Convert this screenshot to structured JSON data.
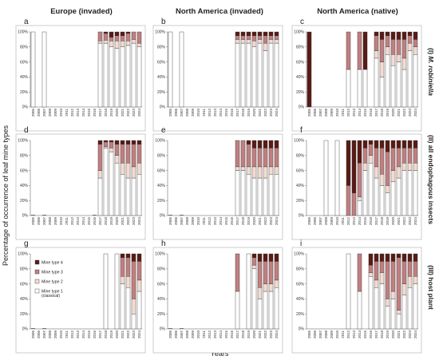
{
  "columns": [
    {
      "title": "Europe (invaded)",
      "bg": "#ffffff"
    },
    {
      "title": "North America (invaded)",
      "bg": "#c9cfea"
    },
    {
      "title": "North America (native)",
      "bg": "#cde3b2"
    }
  ],
  "rows": [
    {
      "label_prefix": "(I) ",
      "label_italic": "M. robiniella",
      "label_suffix": ""
    },
    {
      "label_prefix": "(II) all endophagous insects",
      "label_italic": "",
      "label_suffix": ""
    },
    {
      "label_prefix": "(III) host plant",
      "label_italic": "",
      "label_suffix": ""
    }
  ],
  "y_axis_title": "Percentage of occurrence of leaf mine types",
  "x_axis_title": "Years",
  "colors": {
    "type1": "#ffffff",
    "type2": "#f2dcd2",
    "type3": "#c07f80",
    "type4": "#5a1a14"
  },
  "chart_data": {
    "type": "bar",
    "stacked": true,
    "x": [
      "2005",
      "2006",
      "2007",
      "2008",
      "2009",
      "2010",
      "2011",
      "2012",
      "2013",
      "2014",
      "2015",
      "2016",
      "2017",
      "2018",
      "2019",
      "2020",
      "2021",
      "2022",
      "2023",
      "2024"
    ],
    "y_ticks": [
      "0%",
      "20%",
      "40%",
      "60%",
      "80%",
      "100%"
    ],
    "ylim": [
      0,
      100
    ],
    "legend": [
      "Mine type 4",
      "Mine type 3",
      "Mine type 2",
      "Mine type 1 (classical)"
    ],
    "panels": [
      {
        "label": "a",
        "region": "Europe (invaded)",
        "data": "M. robiniella",
        "t1": [
          100,
          null,
          100,
          null,
          null,
          null,
          null,
          null,
          null,
          null,
          null,
          null,
          85,
          85,
          80,
          78,
          80,
          82,
          85,
          80
        ],
        "t2": [
          0,
          null,
          0,
          null,
          null,
          null,
          null,
          null,
          null,
          null,
          null,
          null,
          3,
          4,
          8,
          10,
          8,
          6,
          5,
          5
        ],
        "t3": [
          0,
          null,
          0,
          null,
          null,
          null,
          null,
          null,
          null,
          null,
          null,
          null,
          12,
          9,
          5,
          7,
          7,
          10,
          10,
          15
        ],
        "t4": [
          0,
          null,
          0,
          null,
          null,
          null,
          null,
          null,
          null,
          null,
          null,
          null,
          0,
          2,
          7,
          5,
          5,
          2,
          0,
          0
        ]
      },
      {
        "label": "b",
        "region": "North America (invaded)",
        "data": "M. robiniella",
        "t1": [
          100,
          null,
          100,
          null,
          null,
          null,
          null,
          null,
          null,
          null,
          null,
          null,
          85,
          85,
          85,
          80,
          85,
          75,
          85,
          85
        ],
        "t2": [
          0,
          null,
          0,
          null,
          null,
          null,
          null,
          null,
          null,
          null,
          null,
          null,
          5,
          5,
          5,
          8,
          5,
          10,
          5,
          5
        ],
        "t3": [
          0,
          null,
          0,
          null,
          null,
          null,
          null,
          null,
          null,
          null,
          null,
          null,
          5,
          5,
          5,
          7,
          5,
          10,
          5,
          5
        ],
        "t4": [
          0,
          null,
          0,
          null,
          null,
          null,
          null,
          null,
          null,
          null,
          null,
          null,
          5,
          5,
          5,
          5,
          5,
          5,
          5,
          5
        ]
      },
      {
        "label": "c",
        "region": "North America (native)",
        "data": "M. robiniella",
        "t1": [
          0,
          null,
          null,
          null,
          null,
          null,
          null,
          50,
          null,
          50,
          50,
          null,
          65,
          40,
          70,
          55,
          60,
          50,
          75,
          70
        ],
        "t2": [
          0,
          null,
          null,
          null,
          null,
          null,
          null,
          0,
          null,
          0,
          0,
          null,
          10,
          20,
          10,
          15,
          10,
          15,
          10,
          10
        ],
        "t3": [
          0,
          null,
          null,
          null,
          null,
          null,
          null,
          50,
          null,
          50,
          0,
          null,
          20,
          30,
          15,
          20,
          20,
          25,
          10,
          10
        ],
        "t4": [
          100,
          null,
          null,
          null,
          null,
          null,
          null,
          0,
          null,
          0,
          50,
          null,
          5,
          10,
          5,
          10,
          10,
          10,
          5,
          10
        ]
      },
      {
        "label": "d",
        "region": "Europe (invaded)",
        "data": "all endophagous insects",
        "t1": [
          0,
          null,
          0,
          null,
          null,
          null,
          null,
          null,
          null,
          null,
          null,
          0,
          50,
          90,
          85,
          70,
          55,
          50,
          50,
          55
        ],
        "t2": [
          0,
          null,
          0,
          null,
          null,
          null,
          null,
          null,
          null,
          null,
          null,
          0,
          10,
          2,
          5,
          10,
          15,
          20,
          15,
          15
        ],
        "t3": [
          0,
          null,
          0,
          null,
          null,
          null,
          null,
          null,
          null,
          null,
          null,
          0,
          35,
          6,
          8,
          15,
          25,
          25,
          30,
          25
        ],
        "t4": [
          0,
          null,
          0,
          null,
          null,
          null,
          null,
          null,
          null,
          null,
          null,
          0,
          5,
          2,
          2,
          5,
          5,
          5,
          5,
          5
        ]
      },
      {
        "label": "e",
        "region": "North America (invaded)",
        "data": "all endophagous insects",
        "t1": [
          0,
          null,
          0,
          null,
          null,
          null,
          null,
          null,
          null,
          null,
          null,
          null,
          60,
          60,
          55,
          50,
          50,
          50,
          55,
          55
        ],
        "t2": [
          0,
          null,
          0,
          null,
          null,
          null,
          null,
          null,
          null,
          null,
          null,
          null,
          5,
          5,
          10,
          15,
          15,
          15,
          10,
          10
        ],
        "t3": [
          0,
          null,
          0,
          null,
          null,
          null,
          null,
          null,
          null,
          null,
          null,
          null,
          35,
          35,
          30,
          25,
          25,
          25,
          25,
          25
        ],
        "t4": [
          0,
          null,
          0,
          null,
          null,
          null,
          null,
          null,
          null,
          null,
          null,
          null,
          0,
          0,
          5,
          10,
          10,
          10,
          10,
          10
        ]
      },
      {
        "label": "f",
        "region": "North America (native)",
        "data": "all endophagous insects",
        "t1": [
          null,
          null,
          null,
          100,
          null,
          100,
          null,
          0,
          0,
          20,
          60,
          70,
          50,
          40,
          30,
          45,
          50,
          60,
          60,
          60
        ],
        "t2": [
          null,
          null,
          null,
          0,
          null,
          0,
          null,
          0,
          0,
          5,
          10,
          10,
          15,
          15,
          10,
          15,
          15,
          10,
          10,
          10
        ],
        "t3": [
          null,
          null,
          null,
          0,
          null,
          0,
          null,
          40,
          30,
          45,
          20,
          15,
          25,
          35,
          45,
          30,
          25,
          20,
          20,
          20
        ],
        "t4": [
          null,
          null,
          null,
          0,
          null,
          0,
          null,
          60,
          70,
          30,
          10,
          5,
          10,
          10,
          15,
          10,
          10,
          10,
          10,
          10
        ]
      },
      {
        "label": "g",
        "region": "Europe (invaded)",
        "data": "host plant",
        "t1": [
          0,
          null,
          0,
          null,
          null,
          null,
          null,
          null,
          null,
          null,
          null,
          null,
          null,
          100,
          null,
          100,
          60,
          55,
          20,
          50
        ],
        "t2": [
          0,
          null,
          0,
          null,
          null,
          null,
          null,
          null,
          null,
          null,
          null,
          null,
          null,
          0,
          null,
          0,
          10,
          15,
          20,
          15
        ],
        "t3": [
          0,
          null,
          0,
          null,
          null,
          null,
          null,
          null,
          null,
          null,
          null,
          null,
          null,
          0,
          null,
          0,
          25,
          25,
          50,
          25
        ],
        "t4": [
          0,
          null,
          0,
          null,
          null,
          null,
          null,
          null,
          null,
          null,
          null,
          null,
          null,
          0,
          null,
          0,
          5,
          5,
          10,
          10
        ]
      },
      {
        "label": "h",
        "region": "North America (invaded)",
        "data": "host plant",
        "t1": [
          0,
          null,
          0,
          null,
          null,
          null,
          null,
          null,
          null,
          null,
          null,
          null,
          50,
          null,
          100,
          80,
          40,
          50,
          50,
          55
        ],
        "t2": [
          0,
          null,
          0,
          null,
          null,
          null,
          null,
          null,
          null,
          null,
          null,
          null,
          0,
          null,
          0,
          5,
          15,
          10,
          10,
          10
        ],
        "t3": [
          0,
          null,
          0,
          null,
          null,
          null,
          null,
          null,
          null,
          null,
          null,
          null,
          50,
          null,
          0,
          10,
          35,
          30,
          30,
          25
        ],
        "t4": [
          0,
          null,
          0,
          null,
          null,
          null,
          null,
          null,
          null,
          null,
          null,
          null,
          0,
          null,
          0,
          5,
          10,
          10,
          10,
          10
        ]
      },
      {
        "label": "i",
        "region": "North America (native)",
        "data": "host plant",
        "t1": [
          null,
          null,
          null,
          null,
          null,
          null,
          null,
          100,
          null,
          50,
          null,
          70,
          55,
          60,
          30,
          40,
          20,
          45,
          55,
          60
        ],
        "t2": [
          null,
          null,
          null,
          null,
          null,
          null,
          null,
          0,
          null,
          0,
          null,
          5,
          10,
          15,
          10,
          10,
          5,
          15,
          15,
          10
        ],
        "t3": [
          null,
          null,
          null,
          null,
          null,
          null,
          null,
          0,
          null,
          50,
          null,
          10,
          25,
          15,
          50,
          40,
          70,
          30,
          20,
          20
        ],
        "t4": [
          null,
          null,
          null,
          null,
          null,
          null,
          null,
          0,
          null,
          0,
          null,
          15,
          10,
          10,
          10,
          10,
          5,
          10,
          10,
          10
        ]
      }
    ]
  }
}
